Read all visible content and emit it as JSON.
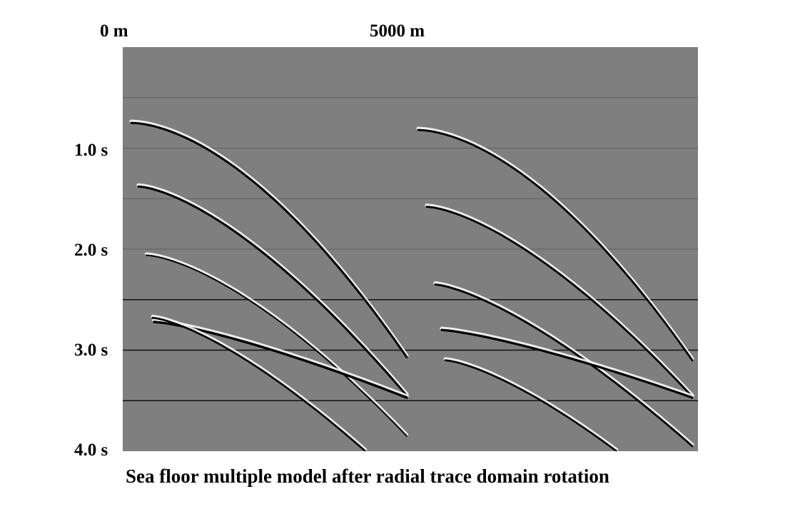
{
  "figure": {
    "x_axis_labels": [
      "0 m",
      "5000 m"
    ],
    "y_axis_labels": [
      "1.0 s",
      "2.0 s",
      "3.0 s",
      "4.0 s"
    ],
    "caption": "Sea floor multiple model after radial trace domain rotation",
    "background_color": "#7f7f7f",
    "event_color": "#000000",
    "event_highlight_color": "#ffffff",
    "time_range_s": [
      0.0,
      4.0
    ],
    "reference_lines_s": [
      0.5,
      1.0,
      1.5,
      2.0,
      2.5,
      3.0,
      3.5
    ],
    "strong_reference_lines_s": [
      2.5,
      3.0,
      3.5
    ],
    "panels": [
      {
        "name": "left",
        "events": [
          {
            "t_start": 0.75,
            "t_end": 3.07,
            "width": 3.0,
            "shape": 1.7
          },
          {
            "t_start": 1.38,
            "t_end": 3.45,
            "width": 3.0,
            "shape": 1.5
          },
          {
            "t_start": 2.06,
            "t_end": 3.85,
            "width": 2.0,
            "shape": 1.5
          },
          {
            "t_start": 2.72,
            "t_end": 3.47,
            "width": 3.4,
            "shape": 1.3
          },
          {
            "t_start": 2.68,
            "t_end": 4.0,
            "width": 2.6,
            "shape": 1.4
          }
        ]
      },
      {
        "name": "right",
        "events": [
          {
            "t_start": 0.82,
            "t_end": 3.1,
            "width": 2.8,
            "shape": 1.7
          },
          {
            "t_start": 1.58,
            "t_end": 3.46,
            "width": 2.8,
            "shape": 1.5
          },
          {
            "t_start": 2.35,
            "t_end": 3.95,
            "width": 2.8,
            "shape": 1.4
          },
          {
            "t_start": 2.8,
            "t_end": 3.47,
            "width": 3.2,
            "shape": 1.3
          },
          {
            "t_start": 3.1,
            "t_end": 4.0,
            "width": 2.6,
            "shape": 1.4
          }
        ]
      }
    ]
  }
}
